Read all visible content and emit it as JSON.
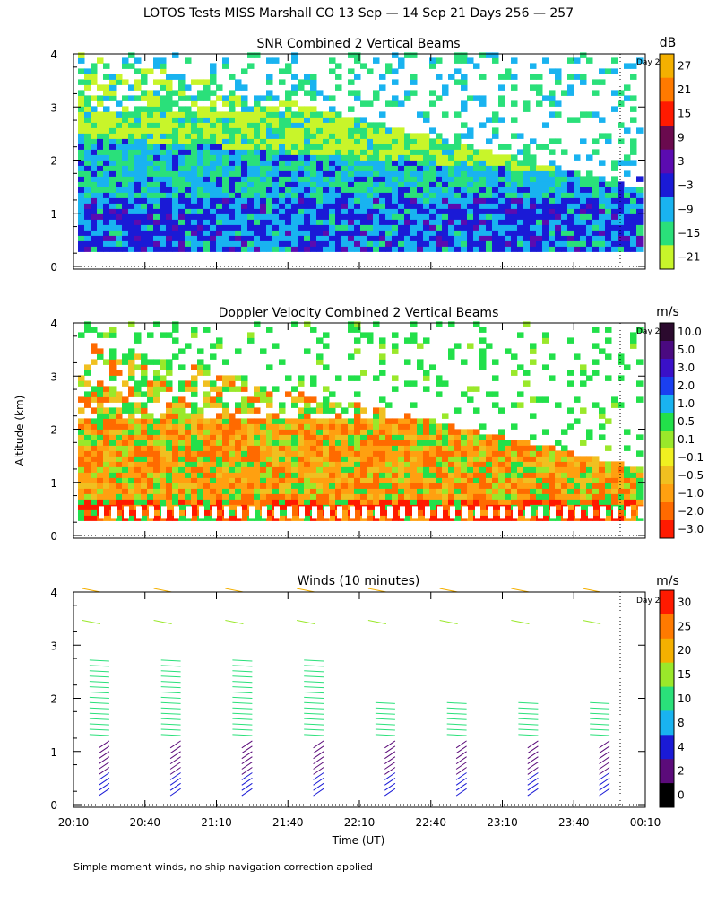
{
  "figure": {
    "title": "LOTOS Tests MISS Marshall CO  13 Sep — 14 Sep 21 Days 256 — 257",
    "ylabel": "Altitude (km)",
    "xlabel": "Time (UT)",
    "footnote": "Simple moment winds, no ship navigation correction applied",
    "day_marker_label": "Day 2",
    "x_ticks": [
      "20:10",
      "20:40",
      "21:10",
      "21:40",
      "22:10",
      "22:40",
      "23:10",
      "23:40",
      "00:10"
    ],
    "y_ticks": [
      "0",
      "1",
      "2",
      "3",
      "4"
    ]
  },
  "chart_data": [
    {
      "type": "heatmap",
      "title": "SNR Combined 2 Vertical Beams",
      "unit": "dB",
      "xlabel": "Time (UT)",
      "ylabel": "Altitude (km)",
      "xlim": [
        "20:10",
        "00:10"
      ],
      "ylim": [
        0,
        4
      ],
      "colorbar_labels": [
        "27",
        "21",
        "15",
        "9",
        "3",
        "−3",
        "−9",
        "−15",
        "−21"
      ],
      "colorbar_colors": [
        "#f4b000",
        "#ff7a00",
        "#ff1a00",
        "#6a0a4e",
        "#5b0bb0",
        "#1a1ad6",
        "#19b3f0",
        "#2ae07a",
        "#c8f52a"
      ],
      "description_of_field": {
        "low_altitude_km": [
          0.25,
          1.2
        ],
        "low_altitude_dB": [
          -3,
          3
        ],
        "mid_altitude_km": [
          1.2,
          2.5
        ],
        "mid_altitude_dB": [
          -15,
          -9
        ],
        "upper_altitude_km": [
          2.5,
          4.0
        ],
        "upper_altitude_dB": [
          -21,
          -15
        ],
        "signal_top_decreases_after": "22:40"
      }
    },
    {
      "type": "heatmap",
      "title": "Doppler Velocity Combined 2 Vertical Beams",
      "unit": "m/s",
      "xlabel": "Time (UT)",
      "ylabel": "Altitude (km)",
      "xlim": [
        "20:10",
        "00:10"
      ],
      "ylim": [
        0,
        4
      ],
      "colorbar_labels": [
        "10.0",
        "5.0",
        "3.0",
        "2.0",
        "1.0",
        "0.5",
        "0.1",
        "−0.1",
        "−0.5",
        "−1.0",
        "−2.0",
        "−3.0"
      ],
      "colorbar_colors": [
        "#2b0a2e",
        "#4a0a80",
        "#3a10c8",
        "#1a3ff0",
        "#19b3f0",
        "#22e04a",
        "#9ae82a",
        "#f0f020",
        "#f0c020",
        "#ffa010",
        "#ff6a00",
        "#ff1a00"
      ],
      "description_of_field": {
        "dominant_velocity_m_s": [
          -2.0,
          -0.5
        ],
        "near_surface_band_km": [
          0.25,
          0.6
        ]
      }
    },
    {
      "type": "scatter",
      "title": "Winds (10 minutes)",
      "unit": "m/s",
      "xlabel": "Time (UT)",
      "ylabel": "Altitude (km)",
      "xlim": [
        "20:10",
        "00:10"
      ],
      "ylim": [
        0,
        4
      ],
      "colorbar_labels": [
        "30",
        "25",
        "20",
        "15",
        "10",
        "8",
        "4",
        "2",
        "0"
      ],
      "colorbar_colors": [
        "#ff1a00",
        "#ff7a00",
        "#f4b000",
        "#9ae82a",
        "#2ae07a",
        "#19b3f0",
        "#1a1ad6",
        "#5b0b7a",
        "#000000"
      ],
      "profile_times": [
        "20:25",
        "20:55",
        "21:25",
        "21:55",
        "22:25",
        "22:55",
        "23:25",
        "23:55"
      ]
    }
  ]
}
